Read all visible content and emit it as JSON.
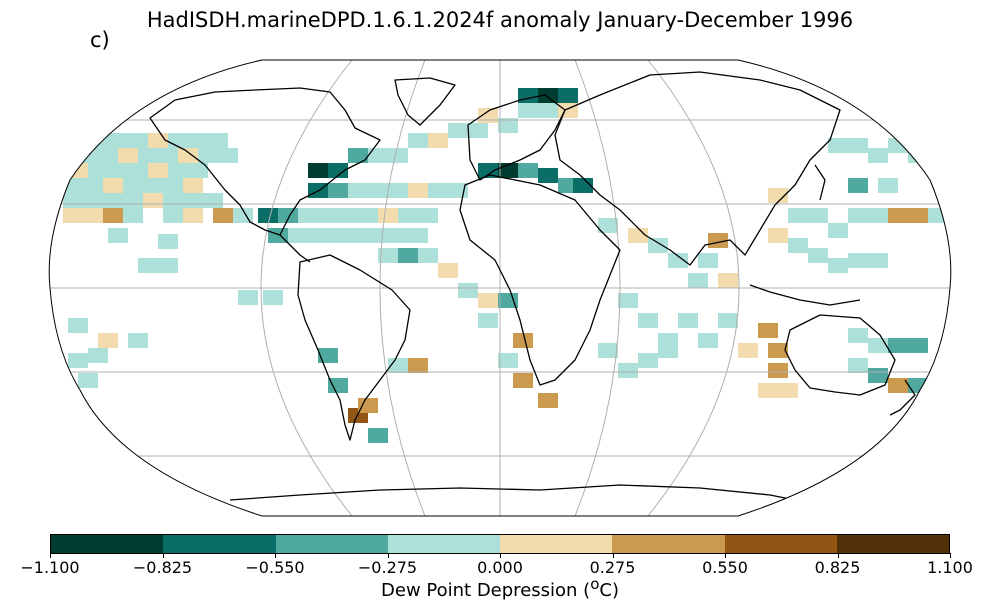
{
  "panel_label": "c)",
  "title": "HadISDH.marineDPD.1.6.1.2024f anomaly January-December 1996",
  "colorbar": {
    "label": "Dew Point Depression (",
    "label_sup": "o",
    "label_end": "C)",
    "ticks": [
      "−1.100",
      "−0.825",
      "−0.550",
      "−0.275",
      "0.000",
      "0.275",
      "0.550",
      "0.825",
      "1.100"
    ],
    "colors": [
      "#013c30",
      "#0b6e66",
      "#4fa99e",
      "#ade0d9",
      "#f2dcae",
      "#cc9a4f",
      "#925514",
      "#513208"
    ]
  },
  "map": {
    "projection": "Robinson",
    "ocean": "#ffffff",
    "coastline": "#000000",
    "gridline": "#b0b0b0"
  }
}
